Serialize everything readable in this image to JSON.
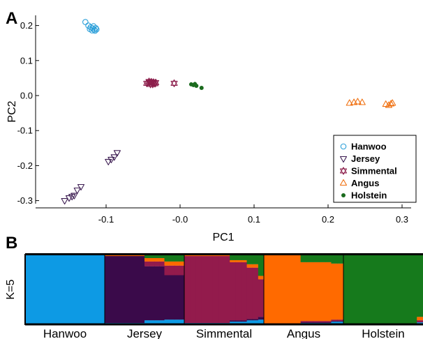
{
  "panels": {
    "a": "A",
    "b": "B"
  },
  "chart_data": [
    {
      "type": "scatter",
      "xlabel": "PC1",
      "ylabel": "PC2",
      "xlim": [
        -0.2,
        0.3
      ],
      "ylim": [
        -0.32,
        0.23
      ],
      "xticks": [
        -0.1,
        0.0,
        0.1,
        0.2,
        0.3
      ],
      "xtick_labels": [
        "-0.1",
        "-0.0",
        "0.1",
        "0.2",
        "0.3"
      ],
      "yticks": [
        0.2,
        0.1,
        0.0,
        -0.1,
        -0.2,
        -0.3
      ],
      "ytick_labels": [
        "0.2",
        "0.1",
        "0.0",
        "-0.1",
        "-0.2",
        "-0.3"
      ],
      "grid": false,
      "legend_position": "bottom-right",
      "series": [
        {
          "name": "Hanwoo",
          "marker": "circle-open",
          "color": "#2b9fd9",
          "points": [
            [
              -0.128,
              0.21
            ],
            [
              -0.124,
              0.2
            ],
            [
              -0.121,
              0.195
            ],
            [
              -0.118,
              0.192
            ],
            [
              -0.116,
              0.188
            ],
            [
              -0.114,
              0.193
            ],
            [
              -0.119,
              0.186
            ],
            [
              -0.115,
              0.185
            ],
            [
              -0.122,
              0.19
            ],
            [
              -0.117,
              0.198
            ],
            [
              -0.113,
              0.189
            ]
          ]
        },
        {
          "name": "Jersey",
          "marker": "triangle-down-open",
          "color": "#3d1d52",
          "points": [
            [
              -0.156,
              -0.3
            ],
            [
              -0.15,
              -0.292
            ],
            [
              -0.146,
              -0.288
            ],
            [
              -0.143,
              -0.285
            ],
            [
              -0.139,
              -0.27
            ],
            [
              -0.134,
              -0.26
            ],
            [
              -0.097,
              -0.188
            ],
            [
              -0.093,
              -0.182
            ],
            [
              -0.089,
              -0.175
            ],
            [
              -0.085,
              -0.163
            ]
          ]
        },
        {
          "name": "Simmental",
          "marker": "star-open",
          "color": "#8c1f4c",
          "points": [
            [
              -0.045,
              0.035
            ],
            [
              -0.042,
              0.04
            ],
            [
              -0.04,
              0.032
            ],
            [
              -0.038,
              0.036
            ],
            [
              -0.036,
              0.038
            ],
            [
              -0.034,
              0.034
            ],
            [
              -0.041,
              0.037
            ],
            [
              -0.037,
              0.032
            ],
            [
              -0.033,
              0.037
            ],
            [
              -0.039,
              0.039
            ],
            [
              -0.008,
              0.035
            ]
          ]
        },
        {
          "name": "Angus",
          "marker": "triangle-up-open",
          "color": "#f07010",
          "points": [
            [
              0.229,
              -0.022
            ],
            [
              0.235,
              -0.02
            ],
            [
              0.24,
              -0.018
            ],
            [
              0.246,
              -0.02
            ],
            [
              0.278,
              -0.025
            ],
            [
              0.282,
              -0.028
            ],
            [
              0.285,
              -0.024
            ],
            [
              0.287,
              -0.022
            ]
          ]
        },
        {
          "name": "Holstein",
          "marker": "dot",
          "color": "#1b6b1e",
          "points": [
            [
              0.015,
              0.032
            ],
            [
              0.018,
              0.03
            ],
            [
              0.02,
              0.033
            ],
            [
              0.022,
              0.028
            ],
            [
              0.029,
              0.022
            ]
          ]
        }
      ]
    },
    {
      "type": "bar",
      "ylabel": "K=5",
      "stacked": true,
      "categories": [
        "Hanwoo",
        "Jersey",
        "Simmental",
        "Angus",
        "Holstein"
      ],
      "ylim": [
        0,
        1
      ],
      "component_colors": [
        "#0d9ae4",
        "#3a0a4a",
        "#931b4c",
        "#ff6a00",
        "#167a1c"
      ],
      "individuals": [
        {
          "pop": "Hanwoo",
          "count": 1,
          "proportions": [
            1,
            0,
            0,
            0,
            0
          ]
        },
        {
          "pop": "Jersey",
          "count": 8,
          "proportions": [
            0.01,
            0.98,
            0.0,
            0.01,
            0.0
          ]
        },
        {
          "pop": "Jersey",
          "count": 4,
          "proportions": [
            0.05,
            0.79,
            0.07,
            0.05,
            0.04
          ]
        },
        {
          "pop": "Jersey",
          "count": 4,
          "proportions": [
            0.06,
            0.65,
            0.14,
            0.06,
            0.09
          ]
        },
        {
          "pop": "Simmental",
          "count": 8,
          "proportions": [
            0.01,
            0.0,
            0.98,
            0.01,
            0.0
          ]
        },
        {
          "pop": "Simmental",
          "count": 3,
          "proportions": [
            0.03,
            0.02,
            0.85,
            0.03,
            0.07
          ]
        },
        {
          "pop": "Simmental",
          "count": 2,
          "proportions": [
            0.05,
            0.02,
            0.75,
            0.05,
            0.13
          ]
        },
        {
          "pop": "Simmental",
          "count": 1,
          "proportions": [
            0.06,
            0.04,
            0.55,
            0.05,
            0.3
          ]
        },
        {
          "pop": "Angus",
          "count": 6,
          "proportions": [
            0.0,
            0.0,
            0.0,
            1.0,
            0.0
          ]
        },
        {
          "pop": "Angus",
          "count": 5,
          "proportions": [
            0.01,
            0.01,
            0.02,
            0.86,
            0.1
          ]
        },
        {
          "pop": "Angus",
          "count": 2,
          "proportions": [
            0.03,
            0.01,
            0.02,
            0.82,
            0.12
          ]
        },
        {
          "pop": "Holstein",
          "count": 12,
          "proportions": [
            0.0,
            0.0,
            0.0,
            0.0,
            1.0
          ]
        },
        {
          "pop": "Holstein",
          "count": 1,
          "proportions": [
            0.02,
            0.0,
            0.03,
            0.05,
            0.9
          ]
        }
      ]
    }
  ]
}
